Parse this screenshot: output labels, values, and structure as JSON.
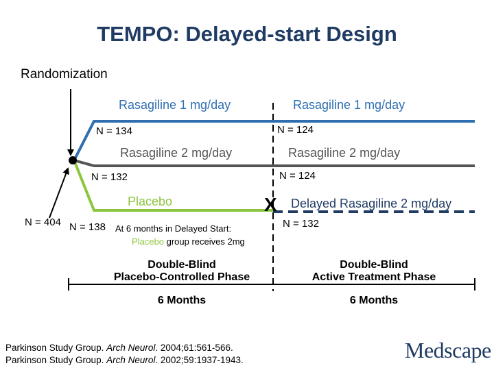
{
  "title": "TEMPO: Delayed-start Design",
  "randomization_label": "Randomization",
  "arms": {
    "r1_phase1": "Rasagiline 1 mg/day",
    "r1_phase2": "Rasagiline 1 mg/day",
    "r2_phase1": "Rasagiline 2 mg/day",
    "r2_phase2": "Rasagiline 2 mg/day",
    "placebo": "Placebo",
    "delayed": "Delayed Rasagiline 2 mg/day"
  },
  "counts": {
    "total": "N = 404",
    "r1_phase1": "N = 134",
    "r1_phase2": "N = 124",
    "r2_phase1": "N = 132",
    "r2_phase2": "N = 124",
    "placebo_phase1": "N = 138",
    "placebo_phase2": "N = 132"
  },
  "note": {
    "line1": "At 6 months in Delayed Start:",
    "line2_placebo": "Placebo",
    "line2_rest": " group receives 2mg"
  },
  "phases": {
    "phase1_line1": "Double-Blind",
    "phase1_line2": "Placebo-Controlled Phase",
    "phase2_line1": "Double-Blind",
    "phase2_line2": "Active Treatment Phase",
    "phase1_duration": "6 Months",
    "phase2_duration": "6 Months"
  },
  "switch_marker": "X",
  "citations": [
    {
      "authors": "Parkinson Study Group. ",
      "journal": "Arch Neurol",
      "details": ". 2004;61:561-566."
    },
    {
      "authors": "Parkinson Study Group. ",
      "journal": "Arch Neurol",
      "details": ". 2002;59:1937-1943."
    }
  ],
  "logo": "Medscape",
  "colors": {
    "blue": "#2f6fb0",
    "gray": "#555555",
    "green": "#8cc63f",
    "navy": "#1f3b63"
  }
}
